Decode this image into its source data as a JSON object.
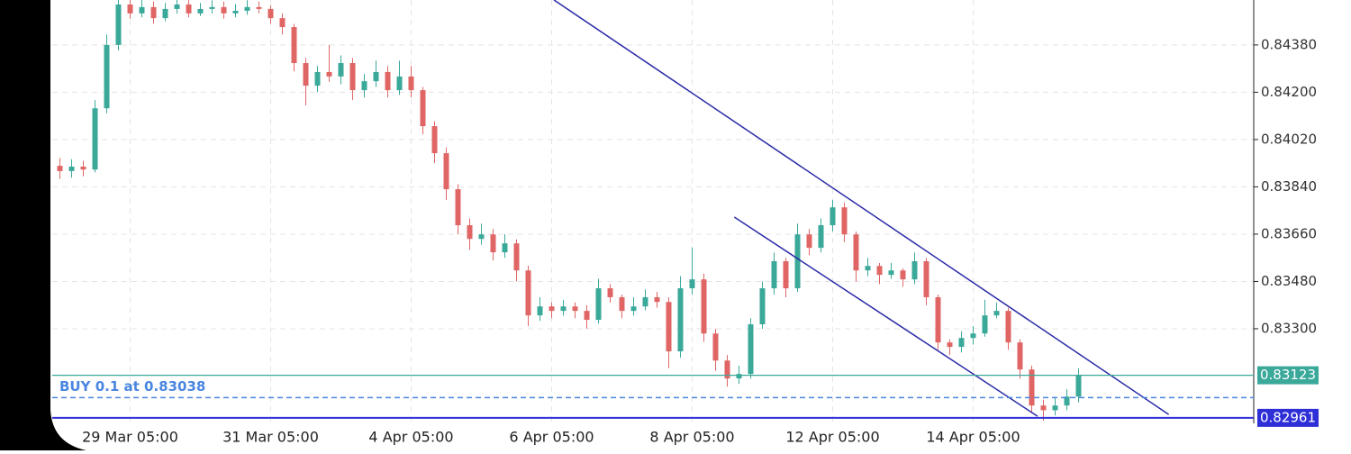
{
  "chart_data": {
    "type": "candlestick",
    "categories": [
      null,
      null,
      null,
      null,
      null,
      null,
      "29 Mar 05:00",
      null,
      null,
      null,
      null,
      null,
      null,
      null,
      null,
      null,
      null,
      null,
      "31 Mar 05:00",
      null,
      null,
      null,
      null,
      null,
      null,
      null,
      null,
      null,
      null,
      null,
      "4 Apr 05:00",
      null,
      null,
      null,
      null,
      null,
      null,
      null,
      null,
      null,
      null,
      null,
      "6 Apr 05:00",
      null,
      null,
      null,
      null,
      null,
      null,
      null,
      null,
      null,
      null,
      null,
      "8 Apr 05:00",
      null,
      null,
      null,
      null,
      null,
      null,
      null,
      null,
      null,
      null,
      null,
      "12 Apr 05:00",
      null,
      null,
      null,
      null,
      null,
      null,
      null,
      null,
      null,
      null,
      null,
      "14 Apr 05:00",
      null,
      null,
      null,
      null,
      null,
      null,
      null,
      null,
      null
    ],
    "open": [
      0.8392,
      0.839,
      0.83917,
      0.83906,
      0.84139,
      0.8438,
      0.84534,
      0.845,
      0.84524,
      0.84482,
      0.84517,
      0.84534,
      0.845,
      0.84517,
      0.84524,
      0.845,
      0.8451,
      0.84524,
      0.84517,
      0.84482,
      0.84448,
      0.84311,
      0.84225,
      0.84277,
      0.8426,
      0.84311,
      0.84208,
      0.84242,
      0.84277,
      0.84208,
      0.8426,
      0.84208,
      0.84071,
      0.83968,
      0.83831,
      0.83694,
      0.83642,
      0.83659,
      0.83591,
      0.83625,
      0.83522,
      0.83351,
      0.83385,
      0.83368,
      0.83385,
      0.83368,
      0.83334,
      0.83454,
      0.8342,
      0.83368,
      0.83385,
      0.8342,
      0.83402,
      0.83214,
      0.83454,
      0.83488,
      0.83282,
      0.83179,
      0.83111,
      0.83128,
      0.83317,
      0.83454,
      0.83557,
      0.83454,
      0.83659,
      0.83608,
      0.83694,
      0.83762,
      0.83659,
      0.83522,
      0.83539,
      0.83505,
      0.83522,
      0.83488,
      0.83557,
      0.8342,
      0.83248,
      0.83231,
      0.83265,
      0.83282,
      0.83351,
      0.83368,
      0.83248,
      0.83145,
      0.83008,
      0.8299,
      0.83008,
      0.83042
    ],
    "high": [
      0.8395,
      0.83945,
      0.8394,
      0.8417,
      0.8442,
      0.8457,
      0.8456,
      0.84555,
      0.84545,
      0.8454,
      0.8456,
      0.84555,
      0.8454,
      0.8455,
      0.84545,
      0.84535,
      0.8455,
      0.84545,
      0.8453,
      0.845,
      0.8446,
      0.8433,
      0.843,
      0.8438,
      0.8434,
      0.8433,
      0.8427,
      0.8432,
      0.843,
      0.8432,
      0.843,
      0.8422,
      0.8409,
      0.8399,
      0.8385,
      0.8372,
      0.837,
      0.8368,
      0.8366,
      0.8364,
      0.8354,
      0.8342,
      0.834,
      0.8341,
      0.834,
      0.8339,
      0.8349,
      0.8347,
      0.8343,
      0.8342,
      0.8345,
      0.8344,
      0.8342,
      0.835,
      0.8361,
      0.8351,
      0.833,
      0.832,
      0.8316,
      0.8334,
      0.8348,
      0.8359,
      0.8357,
      0.837,
      0.8368,
      0.8372,
      0.8379,
      0.8378,
      0.8367,
      0.8357,
      0.8355,
      0.8355,
      0.8353,
      0.8359,
      0.8357,
      0.8343,
      0.8326,
      0.8329,
      0.8331,
      0.8341,
      0.834,
      0.8338,
      0.8326,
      0.8316,
      0.8303,
      0.8304,
      0.8307,
      0.8315
    ],
    "low": [
      0.8387,
      0.83875,
      0.8388,
      0.83895,
      0.8412,
      0.8436,
      0.8448,
      0.84485,
      0.8446,
      0.8447,
      0.845,
      0.84485,
      0.8449,
      0.845,
      0.8448,
      0.84485,
      0.84495,
      0.845,
      0.8446,
      0.8442,
      0.8428,
      0.8415,
      0.842,
      0.8424,
      0.8423,
      0.8417,
      0.8418,
      0.8422,
      0.8418,
      0.8419,
      0.8418,
      0.8404,
      0.8393,
      0.8379,
      0.8366,
      0.836,
      0.8362,
      0.8356,
      0.8357,
      0.8348,
      0.8331,
      0.8333,
      0.8334,
      0.8335,
      0.8334,
      0.833,
      0.8332,
      0.834,
      0.8334,
      0.8335,
      0.8337,
      0.8338,
      0.8315,
      0.8319,
      0.8343,
      0.8325,
      0.8314,
      0.8308,
      0.8309,
      0.8311,
      0.833,
      0.8343,
      0.8342,
      0.8344,
      0.8358,
      0.8359,
      0.8367,
      0.8363,
      0.8348,
      0.835,
      0.8347,
      0.8349,
      0.8346,
      0.8347,
      0.8339,
      0.8322,
      0.832,
      0.8321,
      0.8324,
      0.8327,
      0.8334,
      0.8322,
      0.8311,
      0.8298,
      0.8295,
      0.8297,
      0.8299,
      0.8302
    ],
    "close": [
      0.839,
      0.83917,
      0.83906,
      0.84139,
      0.8438,
      0.84534,
      0.845,
      0.84524,
      0.84482,
      0.84517,
      0.84534,
      0.845,
      0.84517,
      0.84524,
      0.845,
      0.8451,
      0.84524,
      0.84517,
      0.84482,
      0.84448,
      0.84311,
      0.84225,
      0.84277,
      0.8426,
      0.84311,
      0.84208,
      0.84242,
      0.84277,
      0.84208,
      0.8426,
      0.84208,
      0.84071,
      0.83968,
      0.83831,
      0.83694,
      0.83642,
      0.83659,
      0.83591,
      0.83625,
      0.83522,
      0.83351,
      0.83385,
      0.83368,
      0.83385,
      0.83368,
      0.83334,
      0.83454,
      0.8342,
      0.83368,
      0.83385,
      0.8342,
      0.83402,
      0.83214,
      0.83454,
      0.83488,
      0.83282,
      0.83179,
      0.83111,
      0.83128,
      0.83317,
      0.83454,
      0.83557,
      0.83454,
      0.83659,
      0.83608,
      0.83694,
      0.83762,
      0.83659,
      0.83522,
      0.83539,
      0.83505,
      0.83522,
      0.83488,
      0.83557,
      0.8342,
      0.83248,
      0.83231,
      0.83265,
      0.83282,
      0.83351,
      0.83368,
      0.83248,
      0.83145,
      0.83008,
      0.8299,
      0.83008,
      0.83042,
      0.83123
    ],
    "up_color": "#3aa99a",
    "down_color": "#e06666",
    "ylim": [
      0.8294,
      0.84551
    ],
    "yticks": [
      {
        "value": 0.833,
        "label": "0.83300"
      },
      {
        "value": 0.8348,
        "label": "0.83480"
      },
      {
        "value": 0.8366,
        "label": "0.83660"
      },
      {
        "value": 0.8384,
        "label": "0.83840"
      },
      {
        "value": 0.8402,
        "label": "0.84020"
      },
      {
        "value": 0.842,
        "label": "0.84200"
      },
      {
        "value": 0.8438,
        "label": "0.84380"
      }
    ],
    "grid": true,
    "trendlines": [
      {
        "x": [
          42.2,
          94.7
        ],
        "y": [
          0.84551,
          0.82974
        ],
        "color": "#2a2aa8"
      },
      {
        "x": [
          57.6,
          83.5
        ],
        "y": [
          0.83725,
          0.82967
        ],
        "color": "#2a2aa8"
      }
    ],
    "price_lines": [
      {
        "value": 0.83123,
        "color": "#3aa99a",
        "style": "solid",
        "tag": true
      },
      {
        "value": 0.83038,
        "label": "BUY 0.1 at 0.83038",
        "color": "#4a86e0",
        "style": "dashed",
        "tag": false
      },
      {
        "value": 0.82961,
        "color": "#2f2fd8",
        "style": "solid",
        "tag": true
      }
    ]
  }
}
